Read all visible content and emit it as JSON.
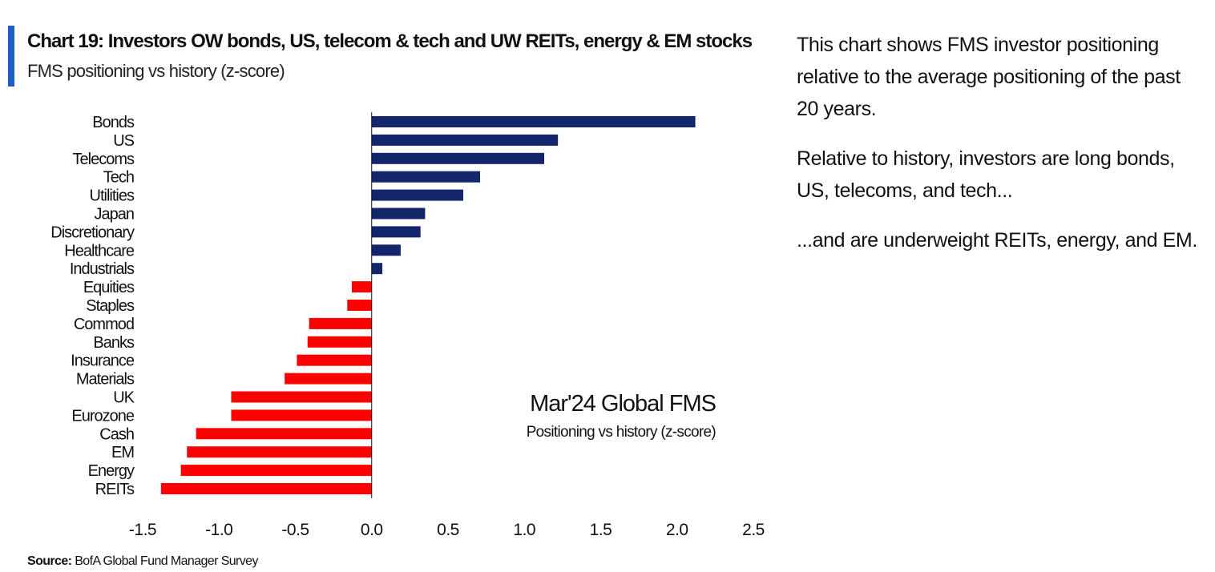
{
  "header": {
    "title": "Chart 19: Investors OW bonds, US, telecom & tech and UW REITs, energy & EM stocks",
    "subtitle": "FMS positioning vs history (z-score)"
  },
  "colors": {
    "accent": "#1f5fc4",
    "positive": "#14266b",
    "negative": "#ff0000"
  },
  "chart_data": {
    "type": "bar",
    "orientation": "horizontal",
    "categories": [
      "Bonds",
      "US",
      "Telecoms",
      "Tech",
      "Utilities",
      "Japan",
      "Discretionary",
      "Healthcare",
      "Industrials",
      "Equities",
      "Staples",
      "Commod",
      "Banks",
      "Insurance",
      "Materials",
      "UK",
      "Eurozone",
      "Cash",
      "EM",
      "Energy",
      "REITs"
    ],
    "values": [
      2.12,
      1.22,
      1.13,
      0.71,
      0.6,
      0.35,
      0.32,
      0.19,
      0.07,
      -0.13,
      -0.16,
      -0.41,
      -0.42,
      -0.49,
      -0.57,
      -0.92,
      -0.92,
      -1.15,
      -1.21,
      -1.25,
      -1.38
    ],
    "xlim": [
      -1.5,
      2.5
    ],
    "xticks": [
      "-1.5",
      "-1.0",
      "-0.5",
      "0.0",
      "0.5",
      "1.0",
      "1.5",
      "2.0",
      "2.5"
    ],
    "xtick_values": [
      -1.5,
      -1.0,
      -0.5,
      0.0,
      0.5,
      1.0,
      1.5,
      2.0,
      2.5
    ],
    "grid": false,
    "annotation": {
      "title": "Mar'24 Global FMS",
      "subtitle": "Positioning vs history (z-score)"
    }
  },
  "source": {
    "label": "Source:",
    "text": "BofA Global Fund Manager Survey"
  },
  "commentary": {
    "p1": "This chart shows FMS investor positioning relative to the average positioning of the past 20 years.",
    "p2": "Relative to history, investors are long bonds, US, telecoms, and tech...",
    "p3": "...and are underweight REITs, energy, and EM."
  }
}
